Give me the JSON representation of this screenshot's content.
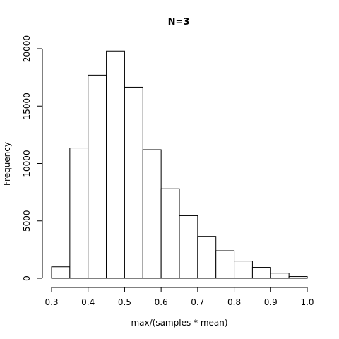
{
  "chart_data": {
    "type": "bar",
    "title": "N=3",
    "xlabel": "max/(samples * mean)",
    "ylabel": "Frequency",
    "xlim": [
      0.3,
      1.0
    ],
    "ylim": [
      0,
      20000
    ],
    "x_ticks": [
      "0.3",
      "0.4",
      "0.5",
      "0.6",
      "0.7",
      "0.8",
      "0.9",
      "1.0"
    ],
    "y_ticks": [
      "0",
      "5000",
      "10000",
      "15000",
      "20000"
    ],
    "bins": [
      {
        "x0": 0.3,
        "x1": 0.35,
        "value": 1000
      },
      {
        "x0": 0.35,
        "x1": 0.4,
        "value": 11350
      },
      {
        "x0": 0.4,
        "x1": 0.45,
        "value": 17700
      },
      {
        "x0": 0.45,
        "x1": 0.5,
        "value": 19800
      },
      {
        "x0": 0.5,
        "x1": 0.55,
        "value": 16650
      },
      {
        "x0": 0.55,
        "x1": 0.6,
        "value": 11200
      },
      {
        "x0": 0.6,
        "x1": 0.65,
        "value": 7800
      },
      {
        "x0": 0.65,
        "x1": 0.7,
        "value": 5450
      },
      {
        "x0": 0.7,
        "x1": 0.75,
        "value": 3650
      },
      {
        "x0": 0.75,
        "x1": 0.8,
        "value": 2400
      },
      {
        "x0": 0.8,
        "x1": 0.85,
        "value": 1500
      },
      {
        "x0": 0.85,
        "x1": 0.9,
        "value": 950
      },
      {
        "x0": 0.9,
        "x1": 0.95,
        "value": 450
      },
      {
        "x0": 0.95,
        "x1": 1.0,
        "value": 150
      }
    ],
    "grid": false,
    "legend": "none"
  }
}
